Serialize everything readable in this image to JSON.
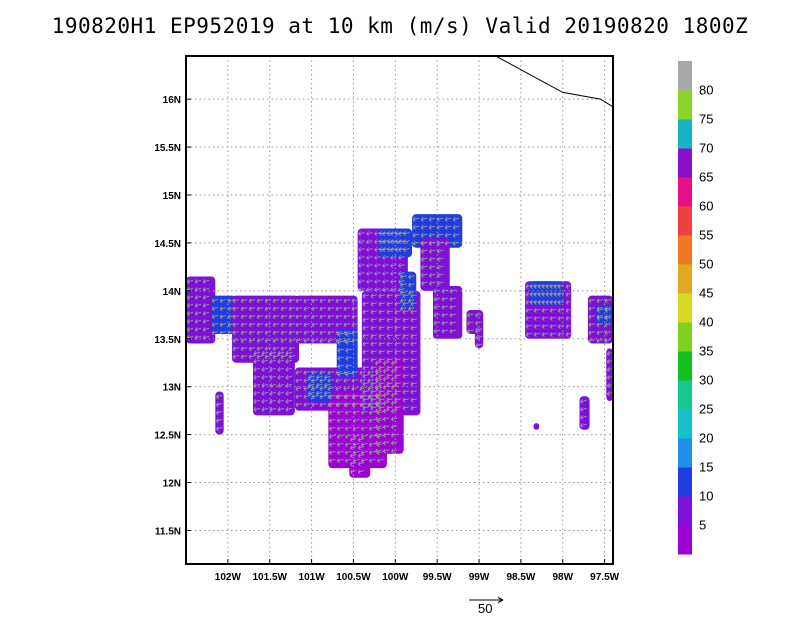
{
  "chart_data": {
    "type": "heatmap",
    "title": "190820H1 EP952019 at 10 km (m/s) Valid 20190820 1800Z",
    "xlim": [
      -102.5,
      -97.4
    ],
    "ylim": [
      11.15,
      16.45
    ],
    "xticks": [
      {
        "value": -102,
        "label": "102W"
      },
      {
        "value": -101.5,
        "label": "101.5W"
      },
      {
        "value": -101,
        "label": "101W"
      },
      {
        "value": -100.5,
        "label": "100.5W"
      },
      {
        "value": -100,
        "label": "100W"
      },
      {
        "value": -99.5,
        "label": "99.5W"
      },
      {
        "value": -99,
        "label": "99W"
      },
      {
        "value": -98.5,
        "label": "98.5W"
      },
      {
        "value": -98,
        "label": "98W"
      },
      {
        "value": -97.5,
        "label": "97.5W"
      }
    ],
    "yticks": [
      {
        "value": 11.5,
        "label": "11.5N"
      },
      {
        "value": 12,
        "label": "12N"
      },
      {
        "value": 12.5,
        "label": "12.5N"
      },
      {
        "value": 13,
        "label": "13N"
      },
      {
        "value": 13.5,
        "label": "13.5N"
      },
      {
        "value": 14,
        "label": "14N"
      },
      {
        "value": 14.5,
        "label": "14.5N"
      },
      {
        "value": 15,
        "label": "15N"
      },
      {
        "value": 15.5,
        "label": "15.5N"
      },
      {
        "value": 16,
        "label": "16N"
      }
    ],
    "grid": true,
    "colorbar": {
      "placement": "right",
      "labels": [
        "5",
        "10",
        "15",
        "20",
        "25",
        "30",
        "35",
        "40",
        "45",
        "50",
        "55",
        "60",
        "65",
        "70",
        "75",
        "80"
      ],
      "colors": [
        "#9b00d4",
        "#7e10d8",
        "#1f3de0",
        "#1e90e8",
        "#16c0c8",
        "#14c890",
        "#12c020",
        "#80d020",
        "#d8d820",
        "#e0a820",
        "#f07820",
        "#f04040",
        "#e8108a",
        "#8a10c8",
        "#14b4c4",
        "#88d428",
        "#a8a8a8"
      ]
    },
    "coastline": [
      [
        -98.8,
        16.45
      ],
      [
        -98.0,
        16.07
      ],
      [
        -97.55,
        16.0
      ],
      [
        -97.4,
        15.92
      ]
    ],
    "wind_regions": [
      {
        "lon": [
          -102.5,
          -102.15
        ],
        "lat": [
          13.45,
          14.15
        ],
        "level": 1
      },
      {
        "lon": [
          -102.2,
          -101.9
        ],
        "lat": [
          13.55,
          13.95
        ],
        "level": 2
      },
      {
        "lon": [
          -101.95,
          -101.15
        ],
        "lat": [
          13.25,
          13.95
        ],
        "level": 1
      },
      {
        "lon": [
          -101.7,
          -101.2
        ],
        "lat": [
          12.7,
          13.4
        ],
        "level": 1
      },
      {
        "lon": [
          -101.2,
          -100.45
        ],
        "lat": [
          13.45,
          13.95
        ],
        "level": 1
      },
      {
        "lon": [
          -101.2,
          -100.1
        ],
        "lat": [
          12.75,
          13.2
        ],
        "level": 1
      },
      {
        "lon": [
          -100.8,
          -100.1
        ],
        "lat": [
          12.15,
          12.95
        ],
        "level": 0
      },
      {
        "lon": [
          -100.55,
          -100.3
        ],
        "lat": [
          12.05,
          12.5
        ],
        "level": 0
      },
      {
        "lon": [
          -100.4,
          -99.7
        ],
        "lat": [
          12.7,
          14.0
        ],
        "level": 1
      },
      {
        "lon": [
          -100.25,
          -99.9
        ],
        "lat": [
          12.3,
          13.3
        ],
        "level": 0
      },
      {
        "lon": [
          -100.7,
          -100.45
        ],
        "lat": [
          13.1,
          13.6
        ],
        "level": 2
      },
      {
        "lon": [
          -101.05,
          -100.75
        ],
        "lat": [
          12.85,
          13.15
        ],
        "level": 2
      },
      {
        "lon": [
          -100.45,
          -99.85
        ],
        "lat": [
          14.0,
          14.65
        ],
        "level": 1
      },
      {
        "lon": [
          -100.2,
          -99.8
        ],
        "lat": [
          14.35,
          14.65
        ],
        "level": 2
      },
      {
        "lon": [
          -99.95,
          -99.75
        ],
        "lat": [
          13.8,
          14.2
        ],
        "level": 2
      },
      {
        "lon": [
          -99.8,
          -99.2
        ],
        "lat": [
          14.45,
          14.8
        ],
        "level": 2
      },
      {
        "lon": [
          -99.7,
          -99.35
        ],
        "lat": [
          14.0,
          14.55
        ],
        "level": 1
      },
      {
        "lon": [
          -99.55,
          -99.2
        ],
        "lat": [
          13.5,
          14.05
        ],
        "level": 1
      },
      {
        "lon": [
          -99.15,
          -98.95
        ],
        "lat": [
          13.55,
          13.8
        ],
        "level": 1
      },
      {
        "lon": [
          -98.45,
          -97.9
        ],
        "lat": [
          13.5,
          14.1
        ],
        "level": 1
      },
      {
        "lon": [
          -98.4,
          -98.0
        ],
        "lat": [
          13.85,
          14.1
        ],
        "level": 2
      },
      {
        "lon": [
          -97.7,
          -97.4
        ],
        "lat": [
          13.45,
          13.95
        ],
        "level": 1
      },
      {
        "lon": [
          -97.6,
          -97.4
        ],
        "lat": [
          13.65,
          13.85
        ],
        "level": 2
      },
      {
        "lon": [
          -97.48,
          -97.4
        ],
        "lat": [
          12.85,
          13.4
        ],
        "level": 1
      },
      {
        "lon": [
          -102.15,
          -102.05
        ],
        "lat": [
          12.5,
          12.95
        ],
        "level": 1
      },
      {
        "lon": [
          -97.8,
          -97.68
        ],
        "lat": [
          12.55,
          12.9
        ],
        "level": 1
      },
      {
        "lon": [
          -99.05,
          -98.95
        ],
        "lat": [
          13.4,
          13.65
        ],
        "level": 1
      },
      {
        "lon": [
          -98.35,
          -98.28
        ],
        "lat": [
          12.55,
          12.62
        ],
        "level": 1
      }
    ],
    "wind_vector_direction": "from east (arrows point west)",
    "reference_vector": {
      "label": "50",
      "speed": 50
    }
  }
}
